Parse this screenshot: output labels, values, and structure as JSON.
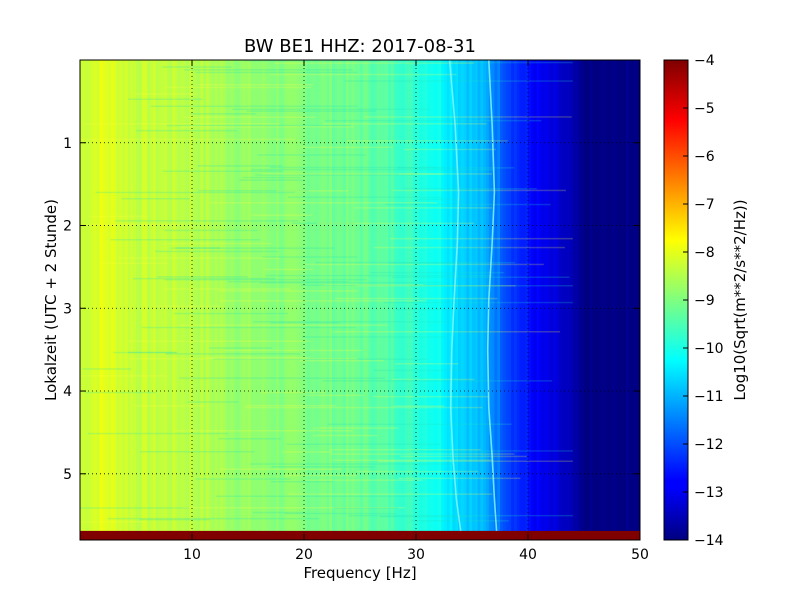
{
  "chart_data": {
    "type": "heatmap",
    "title": "BW BE1 HHZ: 2017-08-31",
    "xlabel": "Frequency [Hz]",
    "ylabel": "Lokalzeit (UTC + 2 Stunde)",
    "xlim": [
      0,
      50
    ],
    "ylim": [
      5.8,
      0
    ],
    "x_ticks": [
      10,
      20,
      30,
      40,
      50
    ],
    "y_ticks": [
      1,
      2,
      3,
      4,
      5
    ],
    "grid": true,
    "grid_style": "dotted",
    "colormap": "jet",
    "colorbar": {
      "label": "Log10(Sqrt(m**2/s**2/Hz))",
      "range": [
        -14,
        -4
      ],
      "ticks": [
        -4,
        -5,
        -6,
        -7,
        -8,
        -9,
        -10,
        -11,
        -12,
        -13,
        -14
      ]
    },
    "spectral_profile": {
      "frequency_hz": [
        0,
        2,
        5,
        10,
        15,
        20,
        25,
        28,
        30,
        32,
        33,
        35,
        36,
        37,
        38,
        39,
        40,
        41,
        42,
        43,
        44,
        45,
        50
      ],
      "level": [
        -8.3,
        -8.0,
        -8.3,
        -8.4,
        -8.8,
        -9.0,
        -9.2,
        -9.5,
        -9.8,
        -10.1,
        -10.4,
        -10.8,
        -11.0,
        -11.4,
        -11.9,
        -12.3,
        -12.6,
        -12.9,
        -13.1,
        -13.3,
        -13.6,
        -14.0,
        -14.0
      ]
    },
    "line_features": [
      {
        "name": "",
        "frequency_hz": [
          33.0,
          33.5,
          33.8,
          33.7,
          33.4,
          33.2,
          33.1,
          33.3,
          33.6,
          34.0
        ],
        "hours": [
          0.0,
          0.8,
          1.6,
          2.2,
          2.9,
          3.5,
          4.2,
          4.8,
          5.3,
          5.7
        ]
      },
      {
        "name": "",
        "frequency_hz": [
          36.5,
          36.8,
          37.0,
          36.8,
          36.5,
          36.4,
          36.5,
          36.8,
          37.0,
          37.2
        ],
        "hours": [
          0.0,
          0.8,
          1.6,
          2.2,
          2.9,
          3.5,
          4.2,
          4.8,
          5.3,
          5.7
        ]
      }
    ],
    "bottom_band": {
      "hours_start": 5.69,
      "hours_end": 5.8,
      "level": -4
    }
  }
}
